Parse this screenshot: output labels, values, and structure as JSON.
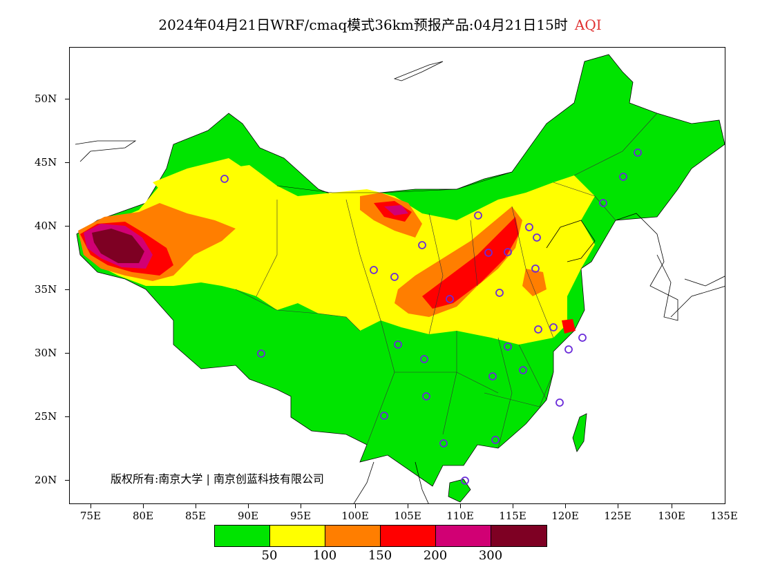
{
  "title": {
    "main": "2024年04月21日WRF/cmaq模式36km预报产品:04月21日15时",
    "variable": "AQI"
  },
  "lat_labels": [
    "50N",
    "45N",
    "40N",
    "35N",
    "30N",
    "25N",
    "20N"
  ],
  "lon_labels": [
    "75E",
    "80E",
    "85E",
    "90E",
    "95E",
    "100E",
    "105E",
    "110E",
    "115E",
    "120E",
    "125E",
    "130E",
    "135E"
  ],
  "copyright": "版权所有:南京大学 | 南京创蓝科技有限公司",
  "legend": {
    "colors": [
      "#00e400",
      "#ffff00",
      "#ff7e00",
      "#ff0000",
      "#d10074",
      "#7e0023"
    ],
    "labels": [
      "50",
      "100",
      "150",
      "200",
      "300"
    ]
  },
  "colors": {
    "good": "#00e400",
    "moderate": "#ffff00",
    "usg": "#ff7e00",
    "unhealthy": "#ff0000",
    "very_unhealthy": "#d10074",
    "hazardous": "#7e0023",
    "station_marker": "#6a2bd9"
  }
}
